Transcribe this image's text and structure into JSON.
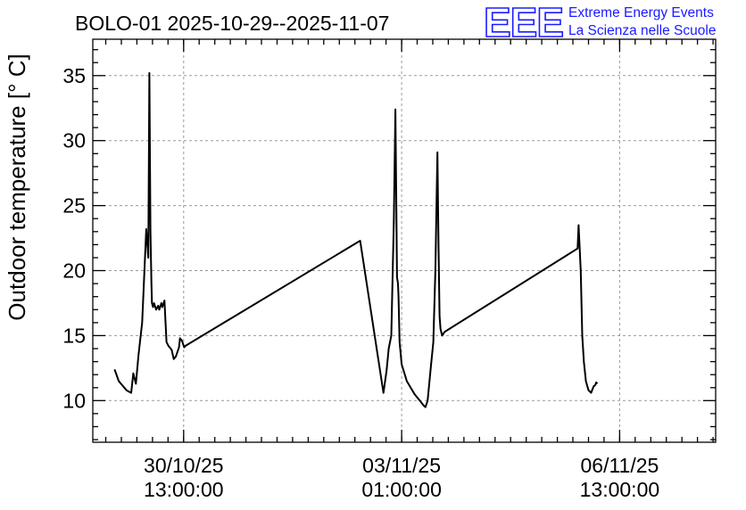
{
  "header": {
    "title": "BOLO-01 2025-10-29--2025-11-07",
    "logo_mark": "EEE",
    "logo_line1": "Extreme Energy Events",
    "logo_line2": "La Scienza nelle Scuole",
    "logo_color": "#1a1aff"
  },
  "chart_data": {
    "type": "line",
    "title": "BOLO-01 2025-10-29--2025-11-07",
    "ylabel": "Outdoor temperature [° C]",
    "xlabel": "",
    "ylim": [
      6.8,
      37.8
    ],
    "xlim": [
      "2025-10-29 02:00",
      "2025-11-08 02:00"
    ],
    "grid": true,
    "y_ticks": [
      10,
      15,
      20,
      25,
      30,
      35
    ],
    "x_ticks": [
      {
        "x": "2025-10-30 13:00",
        "line1": "30/10/25",
        "line2": "13:00:00"
      },
      {
        "x": "2025-11-03 01:00",
        "line1": "03/11/25",
        "line2": "01:00:00"
      },
      {
        "x": "2025-11-06 13:00",
        "line1": "06/11/25",
        "line2": "13:00:00"
      }
    ],
    "series": [
      {
        "name": "",
        "x": [
          "2025-10-29 10:24",
          "2025-10-29 12:00",
          "2025-10-29 15:00",
          "2025-10-29 16:48",
          "2025-10-29 17:36",
          "2025-10-29 18:36",
          "2025-10-29 19:36",
          "2025-10-29 21:00",
          "2025-10-29 22:36",
          "2025-10-29 23:24",
          "2025-10-29 23:48",
          "2025-10-30 00:12",
          "2025-10-30 00:36",
          "2025-10-30 00:48",
          "2025-10-30 01:12",
          "2025-10-30 01:36",
          "2025-10-30 02:24",
          "2025-10-30 03:12",
          "2025-10-30 03:36",
          "2025-10-30 04:24",
          "2025-10-30 04:48",
          "2025-10-30 05:36",
          "2025-10-30 06:24",
          "2025-10-30 07:12",
          "2025-10-30 08:00",
          "2025-10-30 08:24",
          "2025-10-30 09:12",
          "2025-10-30 10:00",
          "2025-10-30 11:12",
          "2025-10-30 11:36",
          "2025-10-30 12:24",
          "2025-10-30 13:12",
          "2025-10-30 13:36",
          "2025-10-30 14:24",
          "2025-11-02 09:00",
          "2025-11-02 18:00",
          "2025-11-02 19:12",
          "2025-11-02 20:00",
          "2025-11-02 21:00",
          "2025-11-02 22:00",
          "2025-11-02 22:36",
          "2025-11-02 23:12",
          "2025-11-02 23:36",
          "2025-11-02 23:48",
          "2025-11-03 00:12",
          "2025-11-03 01:00",
          "2025-11-03 03:00",
          "2025-11-03 06:00",
          "2025-11-03 08:00",
          "2025-11-03 09:36",
          "2025-11-03 10:12",
          "2025-11-03 11:00",
          "2025-11-03 12:12",
          "2025-11-03 13:12",
          "2025-11-03 14:00",
          "2025-11-03 14:48",
          "2025-11-03 15:12",
          "2025-11-03 15:36",
          "2025-11-03 16:00",
          "2025-11-03 16:36",
          "2025-11-03 17:36",
          "2025-11-05 20:48",
          "2025-11-05 21:12",
          "2025-11-05 22:00",
          "2025-11-05 22:36",
          "2025-11-05 23:12",
          "2025-11-06 00:00",
          "2025-11-06 01:00",
          "2025-11-06 02:00",
          "2025-11-06 03:00",
          "2025-11-06 03:36",
          "2025-11-06 04:00",
          "2025-11-06 04:24"
        ],
        "values": [
          12.4,
          11.5,
          10.8,
          10.6,
          12.1,
          11.3,
          13.5,
          16,
          23.2,
          21,
          35.2,
          23,
          19,
          17.5,
          17.2,
          17.5,
          17,
          17.3,
          17,
          17.5,
          17.2,
          17.7,
          14.5,
          14.2,
          14,
          13.9,
          13.2,
          13.4,
          14.1,
          14.8,
          14.6,
          14.1,
          14.2,
          14.3,
          22.3,
          10.6,
          12.3,
          14,
          15,
          24,
          32.4,
          19.5,
          19,
          18,
          14.5,
          12.8,
          11.5,
          10.5,
          10,
          9.6,
          9.5,
          10,
          12.5,
          14.5,
          20,
          29.1,
          22,
          16.5,
          15.5,
          15,
          15.3,
          21.7,
          23.5,
          20,
          15,
          13,
          11.5,
          10.8,
          10.6,
          11.1,
          11.2,
          11.4,
          11.3
        ]
      }
    ]
  }
}
